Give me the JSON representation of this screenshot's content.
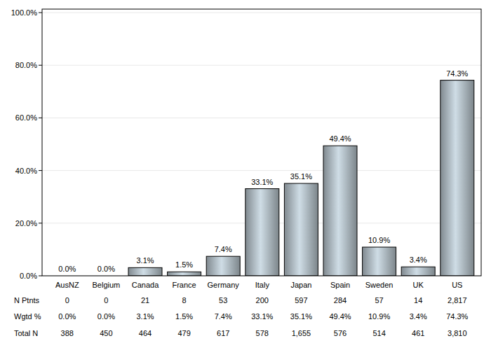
{
  "chart_data": {
    "type": "bar",
    "categories": [
      "AusNZ",
      "Belgium",
      "Canada",
      "France",
      "Germany",
      "Italy",
      "Japan",
      "Spain",
      "Sweden",
      "UK",
      "US"
    ],
    "values": [
      0.0,
      0.0,
      3.1,
      1.5,
      7.4,
      33.1,
      35.1,
      49.4,
      10.9,
      3.4,
      74.3
    ],
    "value_labels": [
      "0.0%",
      "0.0%",
      "3.1%",
      "1.5%",
      "7.4%",
      "33.1%",
      "35.1%",
      "49.4%",
      "10.9%",
      "3.4%",
      "74.3%"
    ],
    "data_labels": true,
    "color": "#cfdde6",
    "ylim": [
      0,
      100
    ],
    "yticks": [
      {
        "value": 0,
        "label": "0.0%"
      },
      {
        "value": 20,
        "label": "20.0%"
      },
      {
        "value": 40,
        "label": "40.0%"
      },
      {
        "value": 60,
        "label": "60.0%"
      },
      {
        "value": 80,
        "label": "80.0%"
      },
      {
        "value": 100,
        "label": "100.0%"
      }
    ],
    "grid": true,
    "table": {
      "row_labels": [
        "N Ptnts",
        "Wgtd %",
        "Total N"
      ],
      "rows": [
        [
          "0",
          "0",
          "21",
          "8",
          "53",
          "200",
          "597",
          "284",
          "57",
          "14",
          "2,817"
        ],
        [
          "0.0%",
          "0.0%",
          "3.1%",
          "1.5%",
          "7.4%",
          "33.1%",
          "35.1%",
          "49.4%",
          "10.9%",
          "3.4%",
          "74.3%"
        ],
        [
          "388",
          "450",
          "464",
          "479",
          "617",
          "578",
          "1,655",
          "576",
          "514",
          "461",
          "3,810"
        ]
      ]
    }
  }
}
